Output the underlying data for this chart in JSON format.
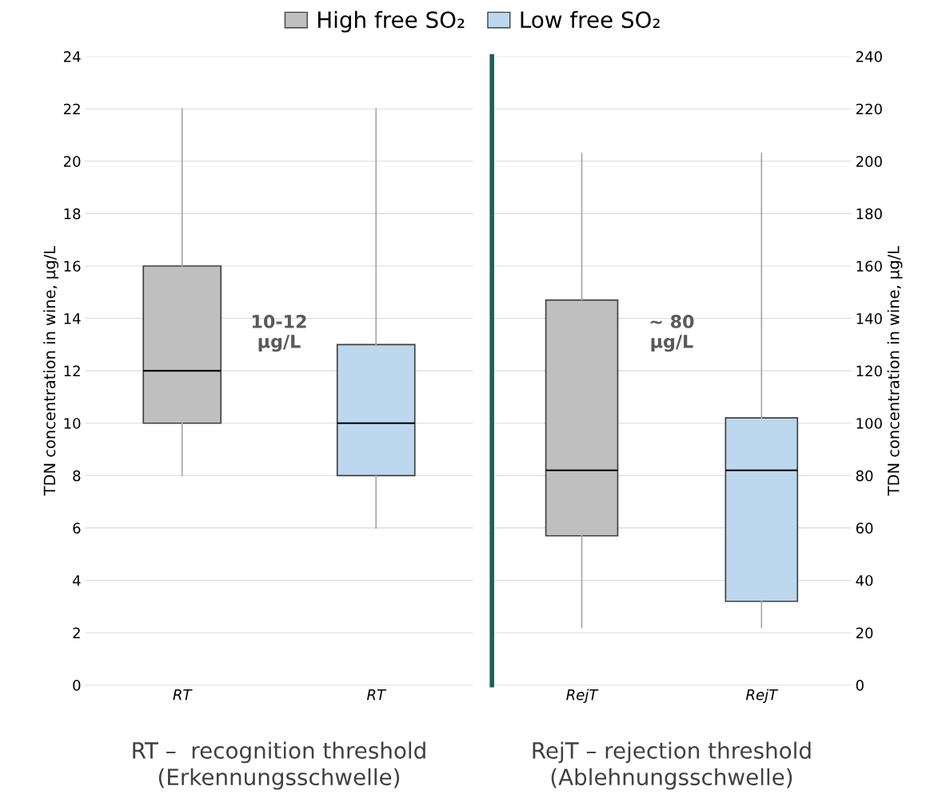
{
  "chart_data": [
    {
      "type": "box",
      "categories": [
        "RT",
        "RT"
      ],
      "ylabel": "TDN concentration in wine, µg/L",
      "ylim": [
        0,
        24
      ],
      "yticks": [
        0,
        2,
        4,
        6,
        8,
        10,
        12,
        14,
        16,
        18,
        20,
        22,
        24
      ],
      "grid": "y",
      "legend": "top",
      "series": [
        {
          "name": "High free SO₂",
          "color": "#bfbfbf",
          "boxes": [
            {
              "low": 8,
              "q1": 10,
              "median": 12,
              "q3": 16,
              "high": 22
            },
            null
          ]
        },
        {
          "name": "Low free SO₂",
          "color": "#bdd7ee",
          "boxes": [
            null,
            {
              "low": 6,
              "q1": 8,
              "median": 10,
              "q3": 13,
              "high": 22
            }
          ]
        }
      ],
      "annotations": [
        "10-12\nµg/L",
        "RT –  recognition threshold\n(Erkennungsschwelle)"
      ]
    },
    {
      "type": "box",
      "categories": [
        "RejT",
        "RejT"
      ],
      "ylabel": "TDN concentration in wine, µg/L",
      "ylim": [
        0,
        240
      ],
      "yticks": [
        0,
        20,
        40,
        60,
        80,
        100,
        120,
        140,
        160,
        180,
        200,
        220,
        240
      ],
      "grid": "y",
      "series": [
        {
          "color": "#bfbfbf",
          "boxes": [
            {
              "low": 22,
              "q1": 57,
              "median": 82,
              "q3": 147,
              "high": 203
            },
            null
          ]
        },
        {
          "color": "#bdd7ee",
          "boxes": [
            null,
            {
              "low": 22,
              "q1": 32,
              "median": 82,
              "q3": 102,
              "high": 203
            }
          ]
        }
      ],
      "annotations": [
        "~ 80\nµg/L",
        "RejT – rejection threshold\n(Ablehnungsschwelle)"
      ]
    }
  ]
}
